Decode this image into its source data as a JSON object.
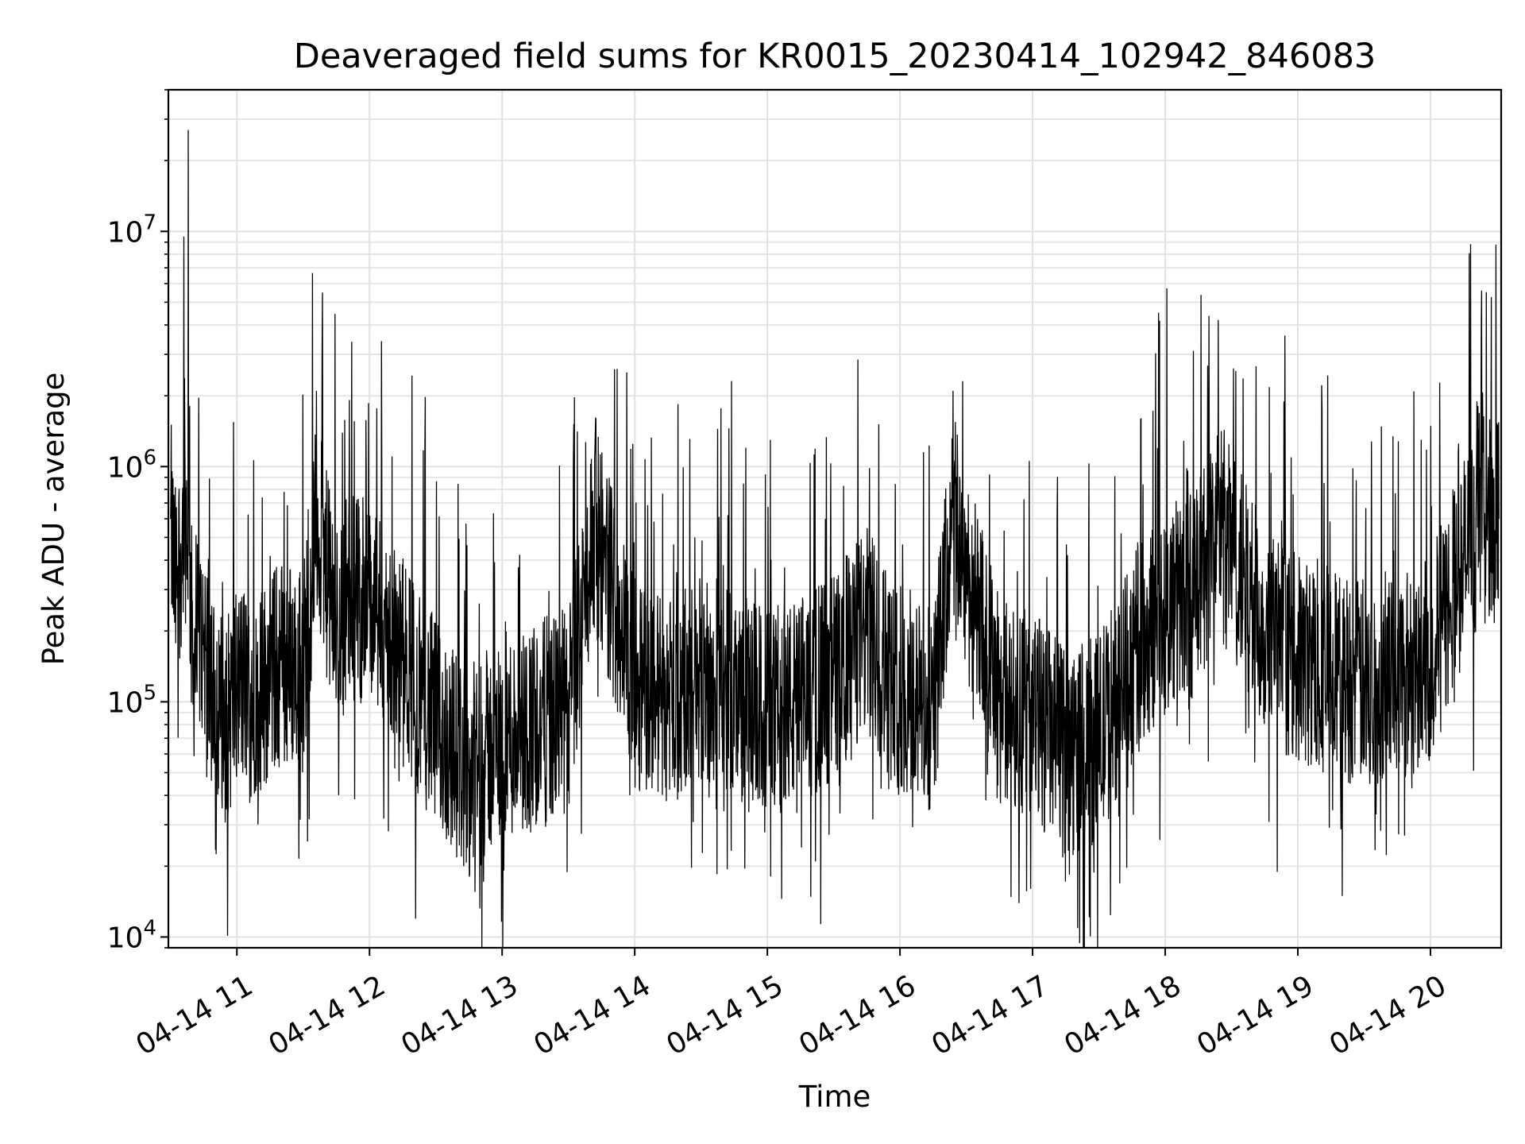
{
  "chart_data": {
    "type": "line",
    "title": "Deaveraged field sums for KR0015_20230414_102942_846083",
    "xlabel": "Time",
    "ylabel": "Peak ADU - average",
    "xlim": [
      "2023-04-14 10:29",
      "2023-04-14 20:32"
    ],
    "ylim": [
      9000,
      40000000
    ],
    "yscale": "log",
    "grid": true,
    "line_color": "#000000",
    "x_ticks": [
      {
        "value": "2023-04-14 11:00",
        "label": "04-14 11"
      },
      {
        "value": "2023-04-14 12:00",
        "label": "04-14 12"
      },
      {
        "value": "2023-04-14 13:00",
        "label": "04-14 13"
      },
      {
        "value": "2023-04-14 14:00",
        "label": "04-14 14"
      },
      {
        "value": "2023-04-14 15:00",
        "label": "04-14 15"
      },
      {
        "value": "2023-04-14 16:00",
        "label": "04-14 16"
      },
      {
        "value": "2023-04-14 17:00",
        "label": "04-14 17"
      },
      {
        "value": "2023-04-14 18:00",
        "label": "04-14 18"
      },
      {
        "value": "2023-04-14 19:00",
        "label": "04-14 19"
      },
      {
        "value": "2023-04-14 20:00",
        "label": "04-14 20"
      }
    ],
    "y_ticks": [
      {
        "value": 10000,
        "base": "10",
        "exp": "4"
      },
      {
        "value": 100000,
        "base": "10",
        "exp": "5"
      },
      {
        "value": 1000000,
        "base": "10",
        "exp": "6"
      },
      {
        "value": 10000000,
        "base": "10",
        "exp": "7"
      }
    ],
    "series": [
      {
        "x": [
          "2023-04-14 10:30",
          "2023-04-14 10:32",
          "2023-04-14 10:34",
          "2023-04-14 10:36",
          "2023-04-14 10:38",
          "2023-04-14 10:40",
          "2023-04-14 10:45",
          "2023-04-14 10:50",
          "2023-04-14 10:55",
          "2023-04-14 11:00",
          "2023-04-14 11:10",
          "2023-04-14 11:20",
          "2023-04-14 11:30",
          "2023-04-14 11:36",
          "2023-04-14 11:45",
          "2023-04-14 11:50",
          "2023-04-14 12:00",
          "2023-04-14 12:15",
          "2023-04-14 12:30",
          "2023-04-14 12:45",
          "2023-04-14 13:00",
          "2023-04-14 13:30",
          "2023-04-14 13:42",
          "2023-04-14 14:00",
          "2023-04-14 14:20",
          "2023-04-14 14:30",
          "2023-04-14 15:00",
          "2023-04-14 15:15",
          "2023-04-14 15:30",
          "2023-04-14 15:45",
          "2023-04-14 16:00",
          "2023-04-14 16:15",
          "2023-04-14 16:24",
          "2023-04-14 16:45",
          "2023-04-14 17:00",
          "2023-04-14 17:15",
          "2023-04-14 17:30",
          "2023-04-14 17:45",
          "2023-04-14 18:00",
          "2023-04-14 18:15",
          "2023-04-14 18:24",
          "2023-04-14 18:45",
          "2023-04-14 19:00",
          "2023-04-14 19:30",
          "2023-04-14 19:45",
          "2023-04-14 20:00",
          "2023-04-14 20:15",
          "2023-04-14 20:23",
          "2023-04-14 20:31"
        ],
        "y": [
          600000,
          300000,
          400000,
          9500000,
          27000000,
          150000,
          200000,
          100000,
          80000,
          120000,
          110000,
          150000,
          140000,
          2100000,
          200000,
          300000,
          250000,
          150000,
          80000,
          50000,
          70000,
          90000,
          1200000,
          120000,
          100000,
          130000,
          90000,
          100000,
          130000,
          200000,
          110000,
          90000,
          2100000,
          100000,
          90000,
          60000,
          70000,
          150000,
          250000,
          300000,
          4200000,
          200000,
          150000,
          120000,
          130000,
          150000,
          400000,
          4200000,
          600000
        ]
      }
    ]
  }
}
